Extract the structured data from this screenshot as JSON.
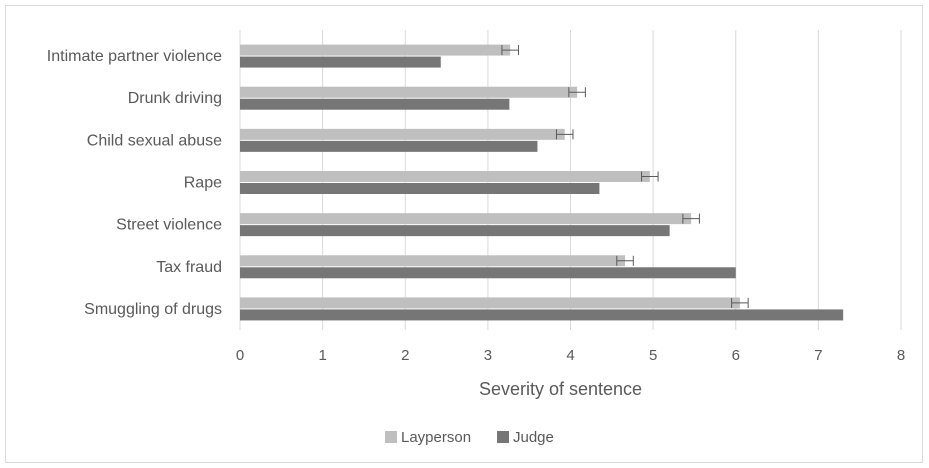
{
  "chart_data": {
    "type": "bar",
    "orientation": "horizontal",
    "categories": [
      "Intimate partner violence",
      "Drunk driving",
      "Child sexual abuse",
      "Rape",
      "Street violence",
      "Tax fraud",
      "Smuggling of drugs"
    ],
    "series": [
      {
        "name": "Layperson",
        "color": "#bfbfbf",
        "values": [
          3.27,
          4.08,
          3.93,
          4.96,
          5.46,
          4.66,
          6.05
        ],
        "error": [
          0.1,
          0.1,
          0.1,
          0.1,
          0.1,
          0.1,
          0.1
        ]
      },
      {
        "name": "Judge",
        "color": "#767676",
        "values": [
          2.43,
          3.26,
          3.6,
          4.35,
          5.2,
          6.0,
          7.3
        ]
      }
    ],
    "xlabel": "Severity of sentence",
    "ylabel": "",
    "xlim": [
      0,
      8
    ],
    "xticks": [
      "0",
      "1",
      "2",
      "3",
      "4",
      "5",
      "6",
      "7",
      "8"
    ],
    "grid": "vertical",
    "legend_position": "bottom"
  }
}
